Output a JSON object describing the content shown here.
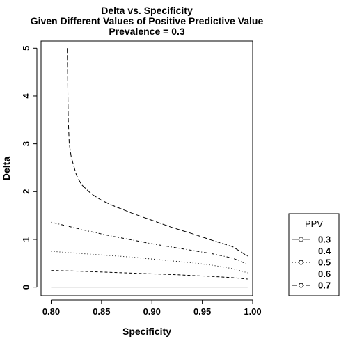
{
  "chart_data": {
    "type": "line",
    "title": [
      "Delta vs. Specificity",
      "Given Different Values of Positive Predictive Value",
      "Prevalence = 0.3"
    ],
    "xlabel": "Specificity",
    "ylabel": "Delta",
    "xlim": [
      0.79,
      1.0
    ],
    "ylim": [
      -0.18,
      5.15
    ],
    "xticks": [
      "0.80",
      "0.85",
      "0.90",
      "0.95",
      "1.00"
    ],
    "yticks": [
      "0",
      "1",
      "2",
      "3",
      "4",
      "5"
    ],
    "legend": {
      "title": "PPV",
      "position": "right"
    },
    "series": [
      {
        "name": "0.3",
        "line": "solid",
        "x": [
          0.8,
          0.995
        ],
        "y": [
          0.0,
          0.0
        ]
      },
      {
        "name": "0.4",
        "line": "dashed",
        "x": [
          0.8,
          0.82,
          0.84,
          0.86,
          0.88,
          0.9,
          0.92,
          0.94,
          0.96,
          0.98,
          0.995
        ],
        "y": [
          0.35,
          0.34,
          0.325,
          0.31,
          0.295,
          0.28,
          0.265,
          0.245,
          0.225,
          0.2,
          0.17
        ]
      },
      {
        "name": "0.5",
        "line": "dotted",
        "x": [
          0.8,
          0.82,
          0.84,
          0.86,
          0.88,
          0.9,
          0.92,
          0.94,
          0.96,
          0.98,
          0.995
        ],
        "y": [
          0.75,
          0.72,
          0.69,
          0.66,
          0.63,
          0.59,
          0.55,
          0.51,
          0.46,
          0.39,
          0.3
        ]
      },
      {
        "name": "0.6",
        "line": "dotdash",
        "x": [
          0.8,
          0.82,
          0.84,
          0.86,
          0.88,
          0.9,
          0.92,
          0.94,
          0.96,
          0.98,
          0.995
        ],
        "y": [
          1.36,
          1.26,
          1.16,
          1.07,
          0.99,
          0.91,
          0.84,
          0.77,
          0.7,
          0.61,
          0.48
        ]
      },
      {
        "name": "0.7",
        "line": "longdash",
        "x": [
          0.816,
          0.817,
          0.818,
          0.82,
          0.825,
          0.83,
          0.84,
          0.85,
          0.86,
          0.88,
          0.9,
          0.92,
          0.94,
          0.96,
          0.98,
          0.995
        ],
        "y": [
          5.0,
          3.5,
          3.0,
          2.72,
          2.35,
          2.15,
          1.95,
          1.82,
          1.72,
          1.55,
          1.4,
          1.25,
          1.12,
          0.98,
          0.85,
          0.65
        ]
      }
    ]
  }
}
